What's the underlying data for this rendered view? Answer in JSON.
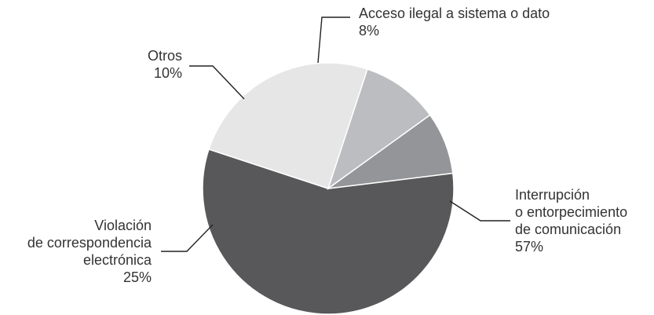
{
  "chart_data": {
    "type": "pie",
    "title": "",
    "legend": "none",
    "slices": [
      {
        "label_lines": [
          "Interrupción",
          "o entorpecimiento",
          "de comunicación"
        ],
        "value": 57,
        "pct_label": "57%",
        "color": "#58585a"
      },
      {
        "label_lines": [
          "Violación",
          "de correspondencia",
          "electrónica"
        ],
        "value": 25,
        "pct_label": "25%",
        "color": "#e6e6e7"
      },
      {
        "label_lines": [
          "Otros"
        ],
        "value": 10,
        "pct_label": "10%",
        "color": "#bcbdc0"
      },
      {
        "label_lines": [
          "Acceso ilegal a sistema o dato"
        ],
        "value": 8,
        "pct_label": "8%",
        "color": "#949598"
      }
    ]
  }
}
